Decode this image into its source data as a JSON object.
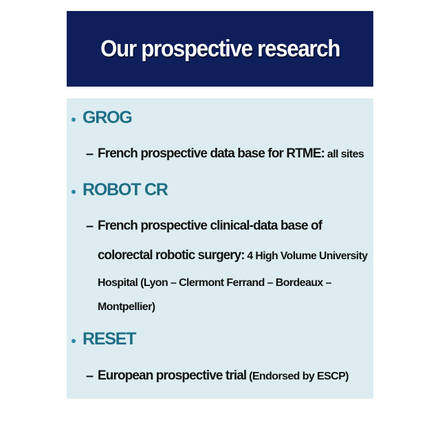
{
  "slide": {
    "title": "Our prospective research",
    "accent_color": "#0e1f5b",
    "heading_color": "#1f6f85",
    "panel_color": "#dcecf1"
  },
  "items": [
    {
      "heading": "GROG",
      "dash": "–",
      "lines": [
        {
          "main": "French prospective data base for RTME:",
          "small": " all sites"
        }
      ]
    },
    {
      "heading": "ROBOT CR",
      "dash": "–",
      "lines": [
        {
          "main": "French prospective clinical-data base of",
          "small": ""
        },
        {
          "main": "colorectal robotic surgery:",
          "small": " 4 High Volume University"
        },
        {
          "main": "",
          "small": "Hospital (Lyon – Clermont Ferrand – Bordeaux –"
        },
        {
          "main": "",
          "small": "Montpellier)"
        }
      ]
    },
    {
      "heading": "RESET",
      "dash": "–",
      "lines": [
        {
          "main": "European prospective trial",
          "small": " (Endorsed by ESCP)"
        }
      ]
    }
  ]
}
